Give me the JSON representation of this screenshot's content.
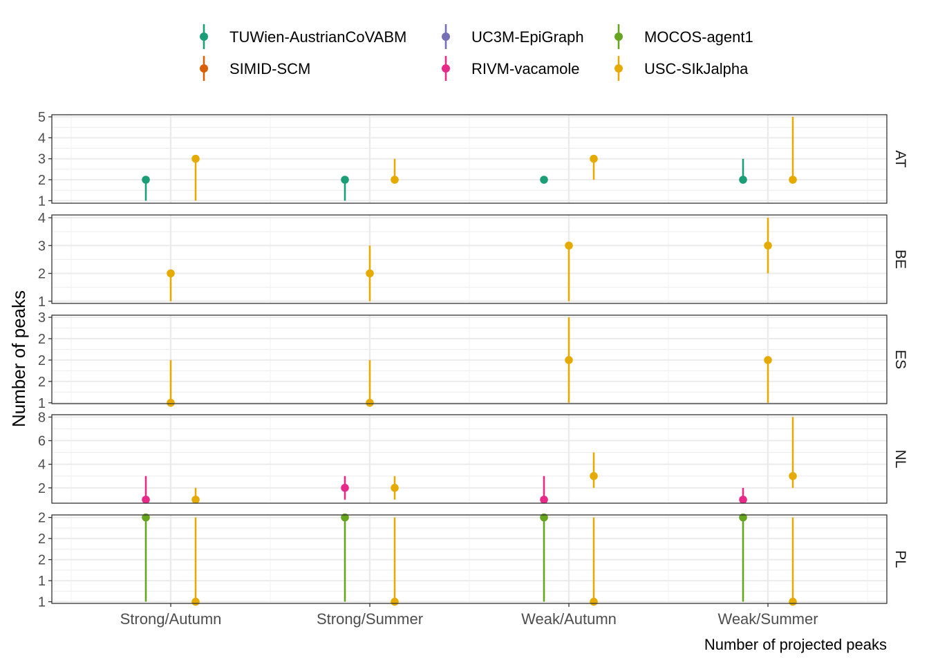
{
  "chart_data": {
    "type": "scatter",
    "subtype": "point-range",
    "ylabel": "Number of peaks",
    "xlabel": "Number of projected peaks",
    "categories": [
      "Strong/Autumn",
      "Strong/Summer",
      "Weak/Autumn",
      "Weak/Summer"
    ],
    "legend_position": "top",
    "grid": true,
    "legend": [
      {
        "name": "TUWien-AustrianCoVABM",
        "color": "#1B9E77"
      },
      {
        "name": "UC3M-EpiGraph",
        "color": "#7570B3"
      },
      {
        "name": "MOCOS-agent1",
        "color": "#66A61E"
      },
      {
        "name": "SIMID-SCM",
        "color": "#D95F02"
      },
      {
        "name": "RIVM-vacamole",
        "color": "#E7298A"
      },
      {
        "name": "USC-SIkJalpha",
        "color": "#E6AB02"
      }
    ],
    "panels": [
      {
        "label": "AT",
        "ylim": [
          0.88,
          5.1
        ],
        "ticks": [
          {
            "v": 1,
            "l": "1"
          },
          {
            "v": 2,
            "l": "2"
          },
          {
            "v": 3,
            "l": "3"
          },
          {
            "v": 4,
            "l": "4"
          },
          {
            "v": 5,
            "l": "5"
          }
        ],
        "series": [
          {
            "name": "TUWien-AustrianCoVABM",
            "offset": -0.125,
            "points": [
              {
                "x": "Strong/Autumn",
                "y": 2,
                "low": 1,
                "high": 2
              },
              {
                "x": "Strong/Summer",
                "y": 2,
                "low": 1,
                "high": 2
              },
              {
                "x": "Weak/Autumn",
                "y": 2,
                "low": 2,
                "high": 2
              },
              {
                "x": "Weak/Summer",
                "y": 2,
                "low": 2,
                "high": 3
              }
            ]
          },
          {
            "name": "USC-SIkJalpha",
            "offset": 0.125,
            "points": [
              {
                "x": "Strong/Autumn",
                "y": 3,
                "low": 1,
                "high": 3
              },
              {
                "x": "Strong/Summer",
                "y": 2,
                "low": 2,
                "high": 3
              },
              {
                "x": "Weak/Autumn",
                "y": 3,
                "low": 2,
                "high": 3
              },
              {
                "x": "Weak/Summer",
                "y": 2,
                "low": 2,
                "high": 5
              }
            ]
          }
        ]
      },
      {
        "label": "BE",
        "ylim": [
          0.92,
          4.1
        ],
        "ticks": [
          {
            "v": 1,
            "l": "1"
          },
          {
            "v": 2,
            "l": "2"
          },
          {
            "v": 3,
            "l": "3"
          },
          {
            "v": 4,
            "l": "4"
          }
        ],
        "series": [
          {
            "name": "USC-SIkJalpha",
            "offset": 0,
            "points": [
              {
                "x": "Strong/Autumn",
                "y": 2,
                "low": 1,
                "high": 2
              },
              {
                "x": "Strong/Summer",
                "y": 2,
                "low": 1,
                "high": 3
              },
              {
                "x": "Weak/Autumn",
                "y": 3,
                "low": 1,
                "high": 3
              },
              {
                "x": "Weak/Summer",
                "y": 3,
                "low": 2,
                "high": 4
              }
            ]
          }
        ]
      },
      {
        "label": "ES",
        "ylim": [
          0.98,
          3.05
        ],
        "ticks": [
          {
            "v": 1,
            "l": "1"
          },
          {
            "v": 1.5,
            "l": "2"
          },
          {
            "v": 2,
            "l": "2"
          },
          {
            "v": 2.5,
            "l": "2"
          },
          {
            "v": 3,
            "l": "3"
          }
        ],
        "series": [
          {
            "name": "USC-SIkJalpha",
            "offset": 0,
            "points": [
              {
                "x": "Strong/Autumn",
                "y": 1,
                "low": 1,
                "high": 2
              },
              {
                "x": "Strong/Summer",
                "y": 1,
                "low": 1,
                "high": 2
              },
              {
                "x": "Weak/Autumn",
                "y": 2,
                "low": 1,
                "high": 3
              },
              {
                "x": "Weak/Summer",
                "y": 2,
                "low": 1,
                "high": 2
              }
            ]
          }
        ]
      },
      {
        "label": "NL",
        "ylim": [
          0.7,
          8.2
        ],
        "ticks": [
          {
            "v": 2,
            "l": "2"
          },
          {
            "v": 4,
            "l": "4"
          },
          {
            "v": 6,
            "l": "6"
          },
          {
            "v": 8,
            "l": "8"
          }
        ],
        "series": [
          {
            "name": "RIVM-vacamole",
            "offset": -0.125,
            "points": [
              {
                "x": "Strong/Autumn",
                "y": 1,
                "low": 1,
                "high": 3
              },
              {
                "x": "Strong/Summer",
                "y": 2,
                "low": 1,
                "high": 3
              },
              {
                "x": "Weak/Autumn",
                "y": 1,
                "low": 1,
                "high": 3
              },
              {
                "x": "Weak/Summer",
                "y": 1,
                "low": 1,
                "high": 2
              }
            ]
          },
          {
            "name": "USC-SIkJalpha",
            "offset": 0.125,
            "points": [
              {
                "x": "Strong/Autumn",
                "y": 1,
                "low": 1,
                "high": 2
              },
              {
                "x": "Strong/Summer",
                "y": 2,
                "low": 1,
                "high": 3
              },
              {
                "x": "Weak/Autumn",
                "y": 3,
                "low": 2,
                "high": 5
              },
              {
                "x": "Weak/Summer",
                "y": 3,
                "low": 2,
                "high": 8
              }
            ]
          }
        ]
      },
      {
        "label": "PL",
        "ylim": [
          0.98,
          2.03
        ],
        "ticks": [
          {
            "v": 1,
            "l": "1"
          },
          {
            "v": 1.25,
            "l": "1"
          },
          {
            "v": 1.5,
            "l": "2"
          },
          {
            "v": 1.75,
            "l": "2"
          },
          {
            "v": 2,
            "l": "2"
          }
        ],
        "series": [
          {
            "name": "MOCOS-agent1",
            "offset": -0.125,
            "points": [
              {
                "x": "Strong/Autumn",
                "y": 2,
                "low": 1,
                "high": 2
              },
              {
                "x": "Strong/Summer",
                "y": 2,
                "low": 1,
                "high": 2
              },
              {
                "x": "Weak/Autumn",
                "y": 2,
                "low": 1,
                "high": 2
              },
              {
                "x": "Weak/Summer",
                "y": 2,
                "low": 1,
                "high": 2
              }
            ]
          },
          {
            "name": "USC-SIkJalpha",
            "offset": 0.125,
            "points": [
              {
                "x": "Strong/Autumn",
                "y": 1,
                "low": 1,
                "high": 2
              },
              {
                "x": "Strong/Summer",
                "y": 1,
                "low": 1,
                "high": 2
              },
              {
                "x": "Weak/Autumn",
                "y": 1,
                "low": 1,
                "high": 2
              },
              {
                "x": "Weak/Summer",
                "y": 1,
                "low": 1,
                "high": 2
              }
            ]
          }
        ]
      }
    ]
  }
}
